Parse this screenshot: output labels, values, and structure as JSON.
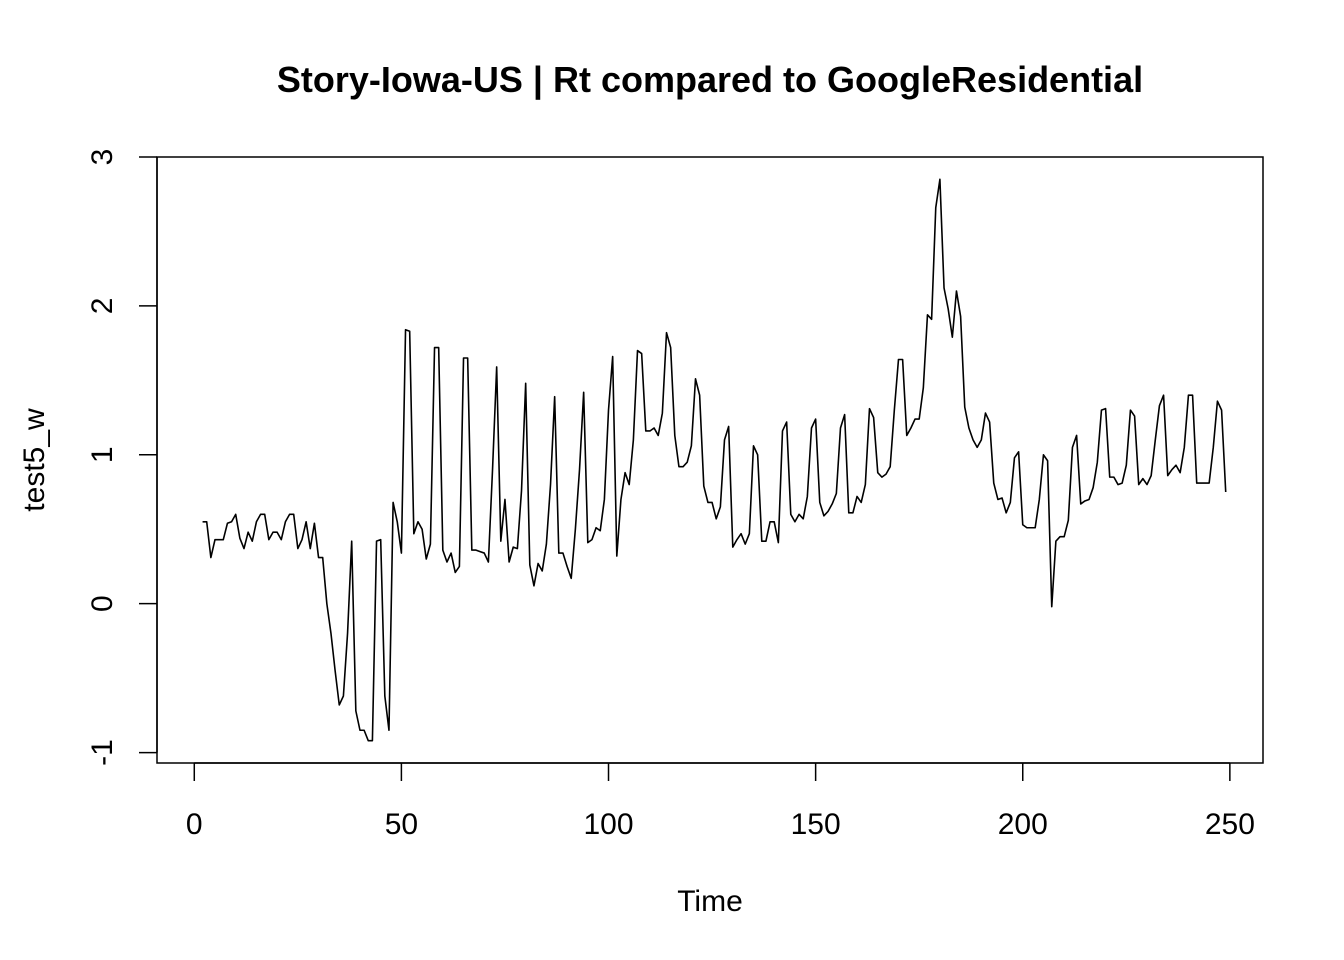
{
  "chart_data": {
    "type": "line",
    "title": "Story-Iowa-US | Rt compared to GoogleResidential",
    "xlabel": "Time",
    "ylabel": "test5_w",
    "xlim": [
      -9,
      258
    ],
    "ylim": [
      -1.07,
      3
    ],
    "x_ticks": [
      0,
      50,
      100,
      150,
      200,
      250
    ],
    "y_ticks": [
      -1,
      0,
      1,
      2,
      3
    ],
    "grid": false,
    "legend": "none",
    "line_color": "#000000",
    "series": [
      {
        "x_start": 2,
        "values": [
          0.55,
          0.55,
          0.31,
          0.43,
          0.43,
          0.43,
          0.54,
          0.55,
          0.6,
          0.44,
          0.37,
          0.48,
          0.42,
          0.55,
          0.6,
          0.6,
          0.43,
          0.48,
          0.48,
          0.43,
          0.55,
          0.6,
          0.6,
          0.37,
          0.43,
          0.55,
          0.37,
          0.54,
          0.31,
          0.31,
          0.0,
          -0.2,
          -0.45,
          -0.68,
          -0.62,
          -0.2,
          0.42,
          -0.72,
          -0.85,
          -0.85,
          -0.92,
          -0.92,
          0.42,
          0.43,
          -0.62,
          -0.85,
          0.68,
          0.55,
          0.34,
          1.84,
          1.83,
          0.47,
          0.55,
          0.5,
          0.3,
          0.4,
          1.72,
          1.72,
          0.36,
          0.28,
          0.34,
          0.21,
          0.25,
          1.65,
          1.65,
          0.36,
          0.36,
          0.35,
          0.34,
          0.28,
          0.9,
          1.59,
          0.42,
          0.7,
          0.28,
          0.38,
          0.37,
          0.76,
          1.48,
          0.26,
          0.12,
          0.27,
          0.22,
          0.4,
          0.8,
          1.39,
          0.34,
          0.34,
          0.25,
          0.17,
          0.5,
          0.9,
          1.42,
          0.41,
          0.43,
          0.51,
          0.49,
          0.7,
          1.3,
          1.66,
          0.32,
          0.7,
          0.88,
          0.8,
          1.1,
          1.7,
          1.68,
          1.16,
          1.16,
          1.18,
          1.13,
          1.28,
          1.82,
          1.72,
          1.13,
          0.92,
          0.92,
          0.95,
          1.06,
          1.51,
          1.4,
          0.79,
          0.68,
          0.68,
          0.57,
          0.65,
          1.1,
          1.19,
          0.38,
          0.43,
          0.47,
          0.4,
          0.47,
          1.06,
          1.0,
          0.42,
          0.42,
          0.55,
          0.55,
          0.41,
          1.16,
          1.22,
          0.6,
          0.55,
          0.6,
          0.57,
          0.72,
          1.18,
          1.24,
          0.68,
          0.59,
          0.62,
          0.67,
          0.74,
          1.18,
          1.27,
          0.61,
          0.61,
          0.72,
          0.68,
          0.8,
          1.31,
          1.25,
          0.88,
          0.85,
          0.87,
          0.92,
          1.3,
          1.64,
          1.64,
          1.13,
          1.18,
          1.24,
          1.24,
          1.45,
          1.94,
          1.91,
          2.66,
          2.85,
          2.12,
          1.98,
          1.79,
          2.1,
          1.93,
          1.32,
          1.18,
          1.1,
          1.05,
          1.1,
          1.28,
          1.22,
          0.81,
          0.7,
          0.71,
          0.61,
          0.68,
          0.98,
          1.02,
          0.53,
          0.51,
          0.51,
          0.51,
          0.7,
          1.0,
          0.96,
          -0.02,
          0.42,
          0.45,
          0.45,
          0.56,
          1.05,
          1.13,
          0.67,
          0.69,
          0.7,
          0.78,
          0.95,
          1.3,
          1.31,
          0.85,
          0.85,
          0.8,
          0.81,
          0.93,
          1.3,
          1.26,
          0.8,
          0.84,
          0.8,
          0.86,
          1.1,
          1.33,
          1.4,
          0.86,
          0.9,
          0.93,
          0.88,
          1.05,
          1.4,
          1.4,
          0.81,
          0.81,
          0.81,
          0.81,
          1.05,
          1.36,
          1.3,
          0.75
        ]
      }
    ]
  }
}
